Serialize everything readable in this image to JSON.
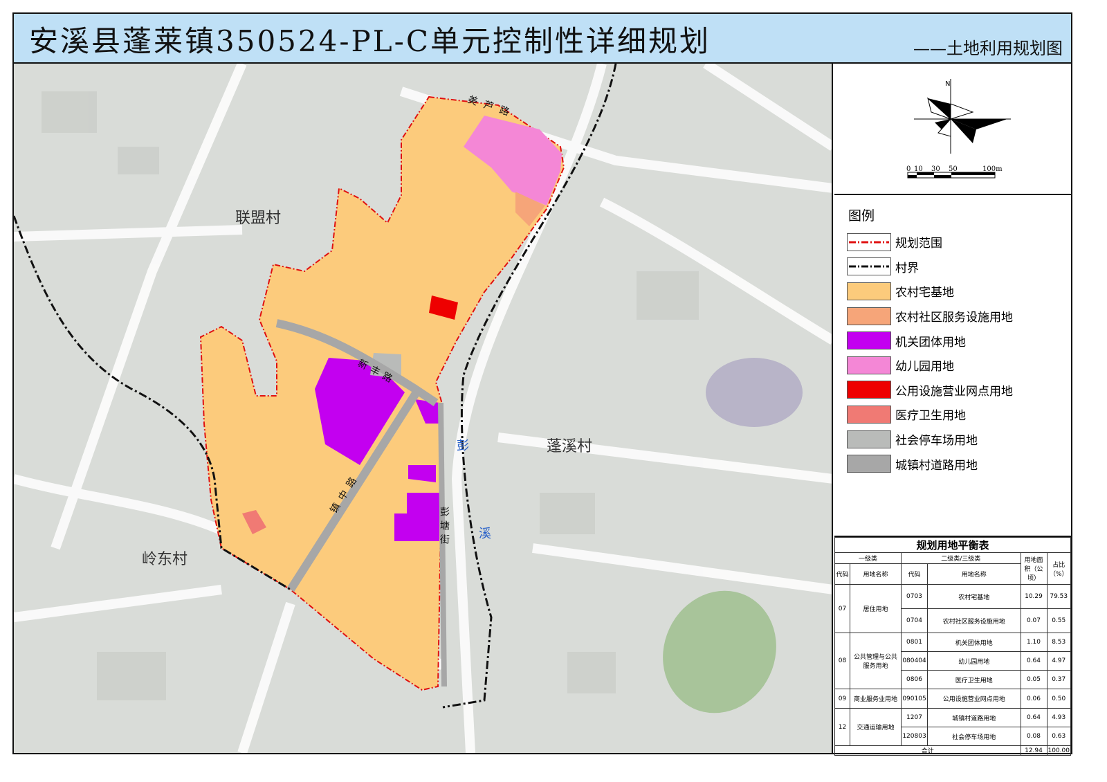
{
  "header": {
    "title": "安溪县蓬莱镇350524-PL-C单元控制性详细规划",
    "subtitle": "——土地利用规划图"
  },
  "map": {
    "villages": [
      "联盟村",
      "蓬溪村",
      "岭东村"
    ],
    "roads": [
      "美芦路",
      "新丰路",
      "镇中路",
      "彭塘街"
    ],
    "river": [
      "彭",
      "溪"
    ]
  },
  "compass": {
    "north": "N",
    "scale_labels": [
      "0",
      "10",
      "30",
      "50",
      "100m"
    ]
  },
  "legend": {
    "title": "图例",
    "items": [
      {
        "label": "规划范围",
        "type": "line",
        "color": "#e01010"
      },
      {
        "label": "村界",
        "type": "line",
        "color": "#111111"
      },
      {
        "label": "农村宅基地",
        "color": "#fccb7c"
      },
      {
        "label": "农村社区服务设施用地",
        "color": "#f6a579"
      },
      {
        "label": "机关团体用地",
        "color": "#c300f0"
      },
      {
        "label": "幼儿园用地",
        "color": "#f487d6"
      },
      {
        "label": "公用设施营业网点用地",
        "color": "#ee0000"
      },
      {
        "label": "医疗卫生用地",
        "color": "#f07a74"
      },
      {
        "label": "社会停车场用地",
        "color": "#b9bbb9"
      },
      {
        "label": "城镇村道路用地",
        "color": "#a7a7a7"
      }
    ]
  },
  "table": {
    "title": "规划用地平衡表",
    "headers": {
      "level1": "一级类",
      "level2": "二级类/三级类",
      "code": "代码",
      "name": "用地名称",
      "area": "用地面积（公顷）",
      "ratio": "占比（%）"
    },
    "groups": [
      {
        "code": "07",
        "name": "居住用地",
        "rows": [
          {
            "code": "0703",
            "name": "农村宅基地",
            "area": "10.29",
            "ratio": "79.53"
          },
          {
            "code": "0704",
            "name": "农村社区服务设施用地",
            "area": "0.07",
            "ratio": "0.55"
          }
        ]
      },
      {
        "code": "08",
        "name": "公共管理与公共服务用地",
        "rows": [
          {
            "code": "0801",
            "name": "机关团体用地",
            "area": "1.10",
            "ratio": "8.53"
          },
          {
            "code": "080404",
            "name": "幼儿园用地",
            "area": "0.64",
            "ratio": "4.97"
          },
          {
            "code": "0806",
            "name": "医疗卫生用地",
            "area": "0.05",
            "ratio": "0.37"
          }
        ]
      },
      {
        "code": "09",
        "name": "商业服务业用地",
        "rows": [
          {
            "code": "090105",
            "name": "公用设施营业网点用地",
            "area": "0.06",
            "ratio": "0.50"
          }
        ]
      },
      {
        "code": "12",
        "name": "交通运输用地",
        "rows": [
          {
            "code": "1207",
            "name": "城镇村道路用地",
            "area": "0.64",
            "ratio": "4.93"
          },
          {
            "code": "120803",
            "name": "社会停车场用地",
            "area": "0.08",
            "ratio": "0.63"
          }
        ]
      }
    ],
    "total": {
      "label": "合计",
      "area": "12.94",
      "ratio": "100.00"
    }
  }
}
